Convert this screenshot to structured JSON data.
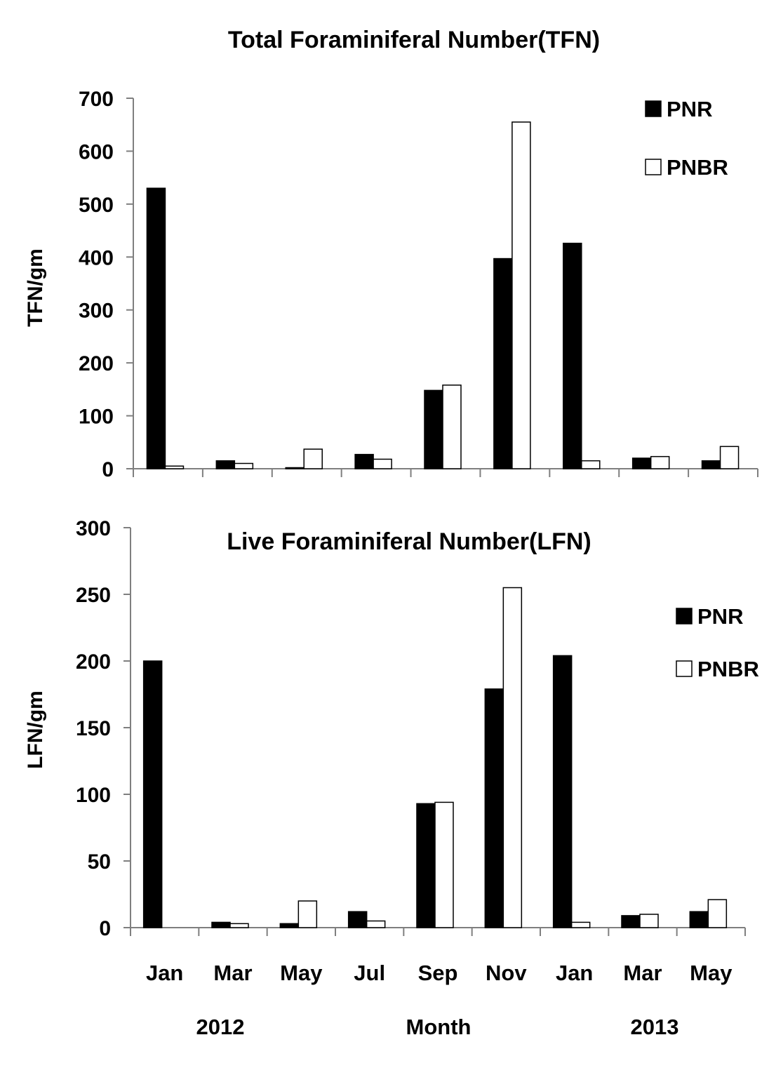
{
  "chart_data": [
    {
      "type": "bar",
      "title": "Total Foraminiferal Number(TFN)",
      "xlabel": "",
      "ylabel": "TFN/gm",
      "ylim": [
        0,
        700
      ],
      "yticks": [
        0,
        100,
        200,
        300,
        400,
        500,
        600,
        700
      ],
      "categories": [
        "Jan",
        "Mar",
        "May",
        "Jul",
        "Sep",
        "Nov",
        "Jan",
        "Mar",
        "May"
      ],
      "series": [
        {
          "name": "PNR",
          "color": "#000000",
          "values": [
            530,
            15,
            2,
            27,
            148,
            397,
            426,
            20,
            15
          ]
        },
        {
          "name": "PNBR",
          "color": "#ffffff",
          "values": [
            5,
            10,
            37,
            18,
            158,
            655,
            15,
            23,
            42
          ]
        }
      ],
      "legend_position": "top-right",
      "grid": false
    },
    {
      "type": "bar",
      "title": "Live Foraminiferal Number(LFN)",
      "xlabel": "Month",
      "ylabel": "LFN/gm",
      "ylim": [
        0,
        300
      ],
      "yticks": [
        0,
        50,
        100,
        150,
        200,
        250,
        300
      ],
      "categories": [
        "Jan",
        "Mar",
        "May",
        "Jul",
        "Sep",
        "Nov",
        "Jan",
        "Mar",
        "May"
      ],
      "year_labels": [
        "2012",
        "2013"
      ],
      "series": [
        {
          "name": "PNR",
          "color": "#000000",
          "values": [
            200,
            4,
            3,
            12,
            93,
            179,
            204,
            9,
            12
          ]
        },
        {
          "name": "PNBR",
          "color": "#ffffff",
          "values": [
            0,
            3,
            20,
            5,
            94,
            255,
            4,
            10,
            21
          ]
        }
      ],
      "legend_position": "top-right",
      "grid": false
    }
  ]
}
